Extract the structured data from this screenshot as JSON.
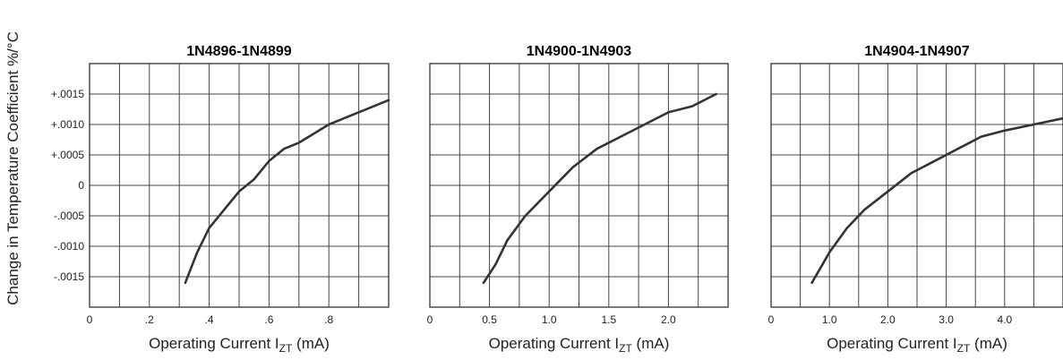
{
  "ylabel": "Change in Temperature Coefficient %/°C",
  "chart_data": [
    {
      "type": "line",
      "title": "1N4896-1N4899",
      "xlabel": "Operating Current I",
      "xlabel_sub": "ZT",
      "xlabel_unit": " (mA)",
      "xlim": [
        0,
        1.0
      ],
      "ylim": [
        -0.002,
        0.002
      ],
      "xticks": [
        0,
        0.2,
        0.4,
        0.6,
        0.8
      ],
      "xtick_labels": [
        "0",
        ".2",
        ".4",
        ".6",
        ".8"
      ],
      "yticks": [
        0.0015,
        0.001,
        0.0005,
        0,
        -0.0005,
        -0.001,
        -0.0015
      ],
      "ytick_labels": [
        "+.0015",
        "+.0010",
        "+.0005",
        "0",
        "-.0005",
        "-.0010",
        "-.0015"
      ],
      "grid": true,
      "series": [
        {
          "x": [
            0.32,
            0.36,
            0.4,
            0.45,
            0.5,
            0.55,
            0.6,
            0.65,
            0.7,
            0.8,
            0.9,
            1.0
          ],
          "y": [
            -0.0016,
            -0.0011,
            -0.0007,
            -0.0004,
            -0.0001,
            0.0001,
            0.0004,
            0.0006,
            0.0007,
            0.001,
            0.0012,
            0.0014
          ]
        }
      ]
    },
    {
      "type": "line",
      "title": "1N4900-1N4903",
      "xlabel": "Operating Current I",
      "xlabel_sub": "ZT",
      "xlabel_unit": " (mA)",
      "xlim": [
        0,
        2.5
      ],
      "ylim": [
        -0.002,
        0.002
      ],
      "xticks": [
        0,
        0.5,
        1.0,
        1.5,
        2.0
      ],
      "xtick_labels": [
        "0",
        "0.5",
        "1.0",
        "1.5",
        "2.0"
      ],
      "yticks": [
        0.0015,
        0.001,
        0.0005,
        0,
        -0.0005,
        -0.001,
        -0.0015
      ],
      "grid": true,
      "series": [
        {
          "x": [
            0.45,
            0.55,
            0.65,
            0.8,
            1.0,
            1.2,
            1.4,
            1.6,
            1.8,
            2.0,
            2.2,
            2.4
          ],
          "y": [
            -0.0016,
            -0.0013,
            -0.0009,
            -0.0005,
            -0.0001,
            0.0003,
            0.0006,
            0.0008,
            0.001,
            0.0012,
            0.0013,
            0.0015
          ]
        }
      ]
    },
    {
      "type": "line",
      "title": "1N4904-1N4907",
      "xlabel": "Operating Current I",
      "xlabel_sub": "ZT",
      "xlabel_unit": " (mA)",
      "xlim": [
        0,
        5.0
      ],
      "ylim": [
        -0.002,
        0.002
      ],
      "xticks": [
        0,
        1.0,
        2.0,
        3.0,
        4.0
      ],
      "xtick_labels": [
        "0",
        "1.0",
        "2.0",
        "3.0",
        "4.0"
      ],
      "yticks": [
        0.0015,
        0.001,
        0.0005,
        0,
        -0.0005,
        -0.001,
        -0.0015
      ],
      "grid": true,
      "series": [
        {
          "x": [
            0.7,
            1.0,
            1.3,
            1.6,
            2.0,
            2.4,
            2.8,
            3.2,
            3.6,
            4.0,
            4.5,
            5.0
          ],
          "y": [
            -0.0016,
            -0.0011,
            -0.0007,
            -0.0004,
            -0.0001,
            0.0002,
            0.0004,
            0.0006,
            0.0008,
            0.0009,
            0.001,
            0.0011
          ]
        }
      ]
    }
  ]
}
